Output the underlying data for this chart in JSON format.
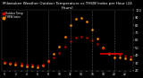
{
  "title": "Milwaukee Weather Outdoor Temperature vs THSW Index per Hour (24 Hours)",
  "title_fontsize": 3.0,
  "hours": [
    0,
    1,
    2,
    3,
    4,
    5,
    6,
    7,
    8,
    9,
    10,
    11,
    12,
    13,
    14,
    15,
    16,
    17,
    18,
    19,
    20,
    21,
    22,
    23
  ],
  "temp": [
    32,
    31,
    30,
    29,
    28,
    28,
    27,
    28,
    32,
    38,
    44,
    52,
    59,
    63,
    65,
    64,
    60,
    55,
    49,
    44,
    42,
    41,
    40,
    39
  ],
  "thsw": [
    30,
    29,
    28,
    27,
    26,
    26,
    25,
    27,
    33,
    42,
    52,
    65,
    80,
    88,
    90,
    85,
    74,
    62,
    50,
    42,
    38,
    37,
    36,
    35
  ],
  "temp_color": "#dd0000",
  "thsw_color": "#ff8800",
  "dot_size_temp": 2.5,
  "dot_size_thsw": 3.5,
  "background_color": "#000000",
  "plot_bg": "#000000",
  "grid_color": "#666666",
  "ylim": [
    20,
    100
  ],
  "xlim": [
    -0.5,
    23.5
  ],
  "yticks": [
    20,
    30,
    40,
    50,
    60,
    70,
    80,
    90,
    100
  ],
  "ytick_labels": [
    "20",
    "30",
    "40",
    "50",
    "60",
    "70",
    "80",
    "90",
    "100"
  ],
  "xtick_labels": [
    "0",
    "",
    "2",
    "",
    "4",
    "",
    "6",
    "",
    "8",
    "",
    "10",
    "",
    "12",
    "",
    "14",
    "",
    "16",
    "",
    "18",
    "",
    "20",
    "",
    "22",
    ""
  ],
  "xtick_positions": [
    0,
    1,
    2,
    3,
    4,
    5,
    6,
    7,
    8,
    9,
    10,
    11,
    12,
    13,
    14,
    15,
    16,
    17,
    18,
    19,
    20,
    21,
    22,
    23
  ],
  "vline_positions": [
    4,
    8,
    12,
    16,
    20
  ],
  "ref_line_start": 17.5,
  "ref_line_end": 21.5,
  "ref_line_y": 42,
  "ref_line_color": "#dd0000",
  "label_temp": "Outdoor Temp",
  "label_thsw": "THSW Index",
  "tick_color": "#ffffff",
  "spine_color": "#444444"
}
